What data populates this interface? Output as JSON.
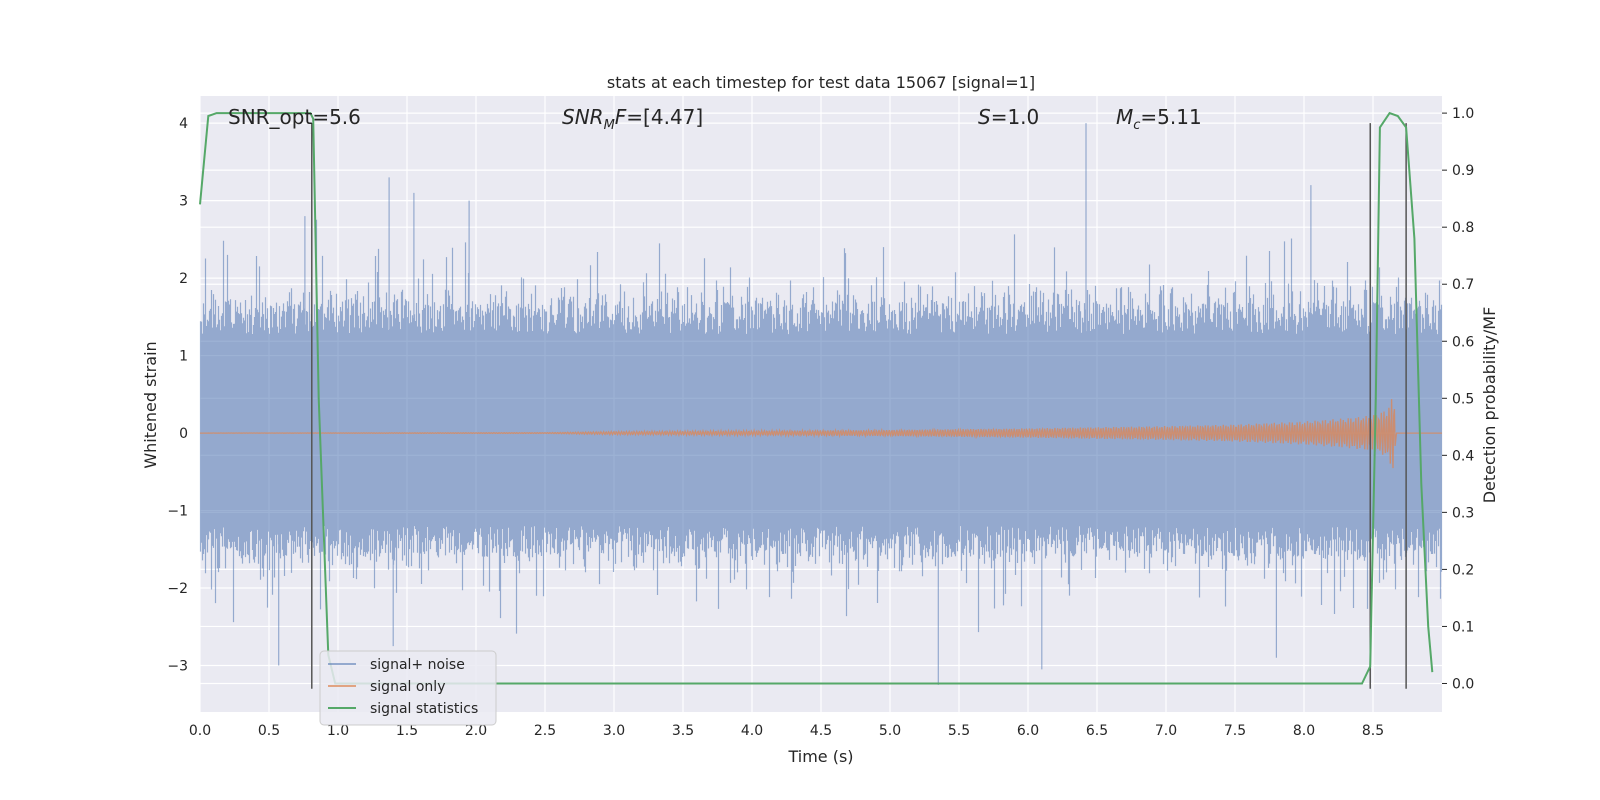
{
  "chart_data": {
    "type": "line",
    "title": "stats at each timestep for test data 15067 [signal=1]",
    "xlabel": "Time (s)",
    "ylabel": "Whitened strain",
    "ylabel_right": "Detection probability/MF",
    "xlim": [
      0.0,
      9.0
    ],
    "ylim": [
      -3.6,
      4.35
    ],
    "ylim_right": [
      -0.05,
      1.03
    ],
    "x_ticks": [
      "0.0",
      "0.5",
      "1.0",
      "1.5",
      "2.0",
      "2.5",
      "3.0",
      "3.5",
      "4.0",
      "4.5",
      "5.0",
      "5.5",
      "6.0",
      "6.5",
      "7.0",
      "7.5",
      "8.0",
      "8.5"
    ],
    "y_ticks": [
      "−3",
      "−2",
      "−1",
      "0",
      "1",
      "2",
      "3",
      "4"
    ],
    "y_ticks_right": [
      "0.0",
      "0.1",
      "0.2",
      "0.3",
      "0.4",
      "0.5",
      "0.6",
      "0.7",
      "0.8",
      "0.9",
      "1.0"
    ],
    "grid": true,
    "legend_position": "bottom-left",
    "annotations": [
      {
        "name": "snr-opt",
        "text": "SNR_opt=5.6"
      },
      {
        "name": "snr-mf",
        "text": "SNR_MF=[4.47]"
      },
      {
        "name": "s-stat",
        "text": "S=1.0"
      },
      {
        "name": "chirp-mass",
        "text": "M_c=5.11"
      }
    ],
    "series": [
      {
        "name": "signal+ noise",
        "color": "#4c72b0",
        "description_envelope": {
          "typical_max": 1.7,
          "typical_min": -1.6,
          "peak_max": 4.0,
          "peak_min": -3.25
        },
        "spikes": [
          {
            "x": 0.76,
            "y": 2.8
          },
          {
            "x": 1.37,
            "y": 3.3
          },
          {
            "x": 1.55,
            "y": 3.1
          },
          {
            "x": 1.95,
            "y": 3.0
          },
          {
            "x": 6.42,
            "y": 4.0
          },
          {
            "x": 8.05,
            "y": 3.2
          },
          {
            "x": 0.57,
            "y": -3.0
          },
          {
            "x": 1.4,
            "y": -2.75
          },
          {
            "x": 5.35,
            "y": -3.25
          },
          {
            "x": 6.1,
            "y": -3.05
          },
          {
            "x": 7.8,
            "y": -2.9
          }
        ]
      },
      {
        "name": "signal only",
        "color": "#dd8452",
        "envelope": [
          {
            "x": 0.0,
            "amp": 0.0
          },
          {
            "x": 2.5,
            "amp": 0.005
          },
          {
            "x": 3.0,
            "amp": 0.02
          },
          {
            "x": 4.0,
            "amp": 0.03
          },
          {
            "x": 5.0,
            "amp": 0.04
          },
          {
            "x": 6.0,
            "amp": 0.06
          },
          {
            "x": 7.0,
            "amp": 0.09
          },
          {
            "x": 7.5,
            "amp": 0.11
          },
          {
            "x": 8.0,
            "amp": 0.15
          },
          {
            "x": 8.3,
            "amp": 0.19
          },
          {
            "x": 8.5,
            "amp": 0.23
          },
          {
            "x": 8.6,
            "amp": 0.3
          },
          {
            "x": 8.65,
            "amp": 0.5
          },
          {
            "x": 8.67,
            "amp": 0.0
          },
          {
            "x": 9.0,
            "amp": 0.0
          }
        ]
      },
      {
        "name": "signal statistics",
        "color": "#55a868",
        "axis": "right",
        "points": [
          {
            "x": 0.0,
            "y": 0.84
          },
          {
            "x": 0.06,
            "y": 0.995
          },
          {
            "x": 0.12,
            "y": 1.0
          },
          {
            "x": 0.4,
            "y": 1.0
          },
          {
            "x": 0.8,
            "y": 1.0
          },
          {
            "x": 0.82,
            "y": 0.99
          },
          {
            "x": 0.86,
            "y": 0.5
          },
          {
            "x": 0.93,
            "y": 0.05
          },
          {
            "x": 0.98,
            "y": 0.0
          },
          {
            "x": 8.42,
            "y": 0.0
          },
          {
            "x": 8.48,
            "y": 0.03
          },
          {
            "x": 8.52,
            "y": 0.5
          },
          {
            "x": 8.55,
            "y": 0.975
          },
          {
            "x": 8.62,
            "y": 1.0
          },
          {
            "x": 8.68,
            "y": 0.995
          },
          {
            "x": 8.74,
            "y": 0.975
          },
          {
            "x": 8.8,
            "y": 0.78
          },
          {
            "x": 8.85,
            "y": 0.35
          },
          {
            "x": 8.9,
            "y": 0.1
          },
          {
            "x": 8.93,
            "y": 0.02
          }
        ]
      }
    ],
    "vertical_lines": [
      {
        "x": 0.81,
        "y_from": -3.3,
        "y_to": 4.0
      },
      {
        "x": 8.48,
        "y_from": -3.3,
        "y_to": 4.0
      },
      {
        "x": 8.74,
        "y_from": -3.3,
        "y_to": 4.0
      }
    ]
  }
}
